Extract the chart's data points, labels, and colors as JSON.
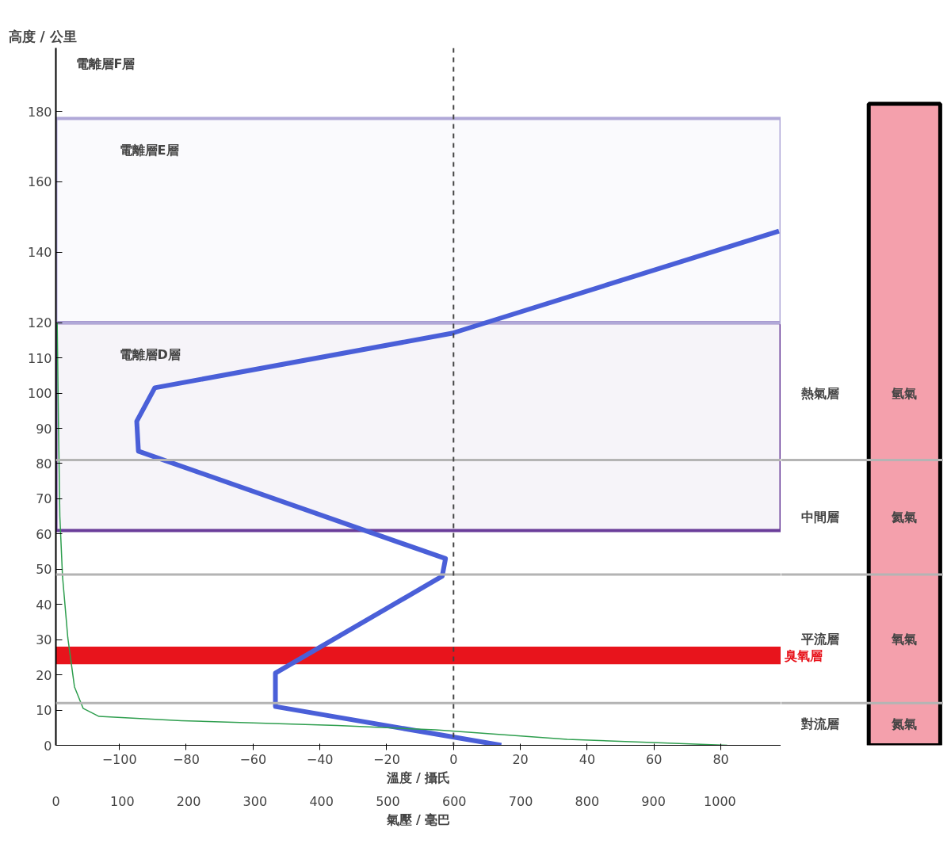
{
  "chart_data": {
    "type": "line",
    "ylabel": "高度 / 公里",
    "xlabel": "溫度 / 攝氏",
    "x2label": "氣壓 / 毫巴",
    "series": [
      {
        "color": "#4a5fd8",
        "x": [
          14.3,
          -53.3,
          -53.3,
          -3.4,
          -2.4,
          -94.3,
          -94.8,
          -89.4,
          -0.4,
          97.4
        ],
        "values": [
          0,
          11,
          20.5,
          48,
          53,
          83.5,
          92,
          101.5,
          117,
          146
        ]
      },
      {
        "color": "#2e9e4e",
        "axis": "x2",
        "x": [
          1011,
          770,
          572,
          424,
          189,
          65,
          41,
          28,
          18,
          10,
          6,
          4,
          2
        ],
        "values": [
          0,
          1.7,
          4.4,
          5.6,
          7,
          8.2,
          10.5,
          16.6,
          30.5,
          48,
          65,
          90,
          120
        ]
      }
    ],
    "xlim": [
      -119,
      98
    ],
    "xticks": [
      -100,
      -80,
      -60,
      -40,
      -20,
      0,
      20,
      40,
      60,
      80
    ],
    "x2lim": [
      0,
      1092
    ],
    "x2ticks": [
      0,
      100,
      200,
      300,
      400,
      500,
      600,
      700,
      800,
      900,
      1000
    ],
    "ylim": [
      0,
      198
    ],
    "yticks": [
      0,
      10,
      20,
      30,
      40,
      50,
      60,
      70,
      80,
      90,
      100,
      110,
      120,
      140,
      160,
      180
    ],
    "ref_lines": [
      {
        "axis": "y",
        "value": 12,
        "color": "#b4b4b4"
      },
      {
        "axis": "y",
        "value": 48.5,
        "color": "#b4b4b4"
      },
      {
        "axis": "y",
        "value": 81,
        "color": "#b4b4b4"
      },
      {
        "axis": "x",
        "value": 0,
        "color": "#444444",
        "line_style": "dashed"
      }
    ],
    "bands": [
      {
        "axis": "y",
        "from": 61,
        "to": 120,
        "label": "電離層D層",
        "color": "#6a3d9a"
      },
      {
        "axis": "y",
        "from": 120,
        "to": 178,
        "label": "電離層E層",
        "color": "#b0a8d8"
      },
      {
        "axis": "y",
        "from": 23,
        "to": 28,
        "label": "臭氧層",
        "color": "#e8141c"
      }
    ],
    "annotations": [
      "電離層F層",
      "熱氣層",
      "中間層",
      "平流層",
      "對流層",
      "氫氣",
      "氦氣",
      "氧氣",
      "氮氣"
    ],
    "grid": false,
    "marker": "none",
    "line_style": "solid"
  }
}
